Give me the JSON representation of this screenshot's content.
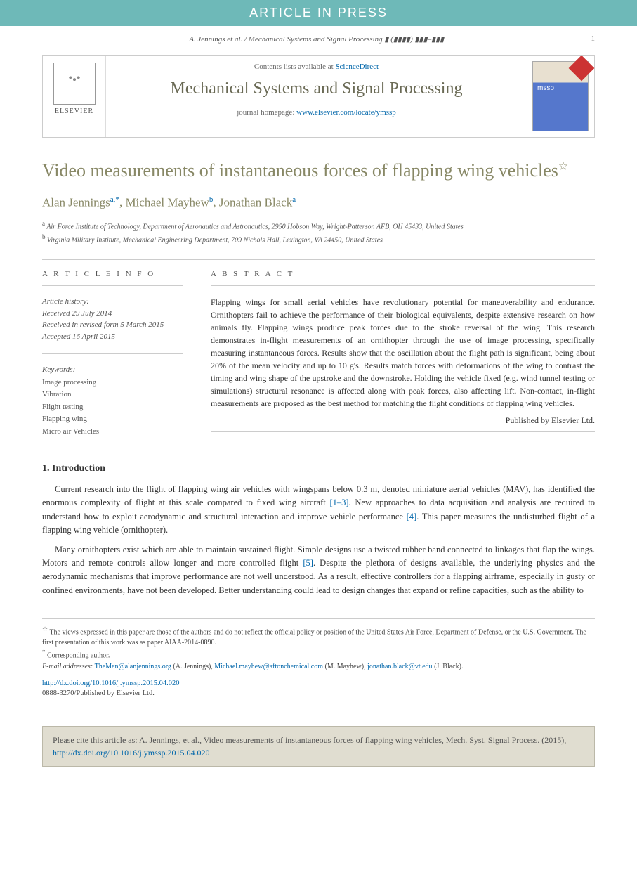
{
  "banner": "ARTICLE IN PRESS",
  "running_head": "A. Jennings et al. / Mechanical Systems and Signal Processing ▮ (▮▮▮▮) ▮▮▮–▮▮▮",
  "page_number": "1",
  "journal_box": {
    "contents_prefix": "Contents lists available at ",
    "contents_link": "ScienceDirect",
    "journal_name": "Mechanical Systems and Signal Processing",
    "homepage_prefix": "journal homepage: ",
    "homepage_url": "www.elsevier.com/locate/ymssp",
    "publisher": "ELSEVIER",
    "cover_abbr": "mssp"
  },
  "title": "Video measurements of instantaneous forces of flapping wing vehicles",
  "title_note": "☆",
  "authors": [
    {
      "name": "Alan Jennings",
      "marks": "a,*"
    },
    {
      "name": "Michael Mayhew",
      "marks": "b"
    },
    {
      "name": "Jonathan Black",
      "marks": "a"
    }
  ],
  "affiliations": [
    {
      "mark": "a",
      "text": "Air Force Institute of Technology, Department of Aeronautics and Astronautics, 2950 Hobson Way, Wright-Patterson AFB, OH 45433, United States"
    },
    {
      "mark": "b",
      "text": "Virginia Military Institute, Mechanical Engineering Department, 709 Nichols Hall, Lexington, VA 24450, United States"
    }
  ],
  "article_info": {
    "heading": "A R T I C L E   I N F O",
    "history_label": "Article history:",
    "received": "Received 29 July 2014",
    "revised": "Received in revised form 5 March 2015",
    "accepted": "Accepted 16 April 2015",
    "kw_label": "Keywords:",
    "keywords": [
      "Image processing",
      "Vibration",
      "Flight testing",
      "Flapping wing",
      "Micro air Vehicles"
    ]
  },
  "abstract": {
    "heading": "A B S T R A C T",
    "text": "Flapping wings for small aerial vehicles have revolutionary potential for maneuverability and endurance. Ornithopters fail to achieve the performance of their biological equivalents, despite extensive research on how animals fly. Flapping wings produce peak forces due to the stroke reversal of the wing. This research demonstrates in-flight measurements of an ornithopter through the use of image processing, specifically measuring instantaneous forces. Results show that the oscillation about the flight path is significant, being about 20% of the mean velocity and up to 10 g's. Results match forces with deformations of the wing to contrast the timing and wing shape of the upstroke and the downstroke. Holding the vehicle fixed (e.g. wind tunnel testing or simulations) structural resonance is affected along with peak forces, also affecting lift. Non-contact, in-flight measurements are proposed as the best method for matching the flight conditions of flapping wing vehicles.",
    "publisher": "Published by Elsevier Ltd."
  },
  "sections": {
    "intro_heading": "1.  Introduction",
    "para1_a": "Current research into the flight of flapping wing air vehicles with wingspans below 0.3 m, denoted miniature aerial vehicles (MAV), has identified the enormous complexity of flight at this scale compared to fixed wing aircraft ",
    "ref1": "[1–3]",
    "para1_b": ". New approaches to data acquisition and analysis are required to understand how to exploit aerodynamic and structural interaction and improve vehicle performance ",
    "ref2": "[4]",
    "para1_c": ". This paper measures the undisturbed flight of a flapping wing vehicle (ornithopter).",
    "para2_a": "Many ornithopters exist which are able to maintain sustained flight. Simple designs use a twisted rubber band connected to linkages that flap the wings. Motors and remote controls allow longer and more controlled flight ",
    "ref3": "[5]",
    "para2_b": ". Despite the plethora of designs available, the underlying physics and the aerodynamic mechanisms that improve performance are not well understood. As a result, effective controllers for a flapping airframe, especially in gusty or confined environments, have not been developed. Better understanding could lead to design changes that expand or refine capacities, such as the ability to"
  },
  "footnotes": {
    "views": "The views expressed in this paper are those of the authors and do not reflect the official policy or position of the United States Air Force, Department of Defense, or the U.S. Government. The first presentation of this work was as paper AIAA-2014-0890.",
    "corr": "Corresponding author.",
    "email_label": "E-mail addresses: ",
    "emails": [
      {
        "addr": "TheMan@alanjennings.org",
        "who": "(A. Jennings)"
      },
      {
        "addr": "Michael.mayhew@aftonchemical.com",
        "who": "(M. Mayhew)"
      },
      {
        "addr": "jonathan.black@vt.edu",
        "who": "(J. Black)"
      }
    ]
  },
  "doi": {
    "url": "http://dx.doi.org/10.1016/j.ymssp.2015.04.020",
    "issn": "0888-3270/Published by Elsevier Ltd."
  },
  "citebox": {
    "prefix": "Please cite this article as: A. Jennings, et al., Video measurements of instantaneous forces of flapping wing vehicles, Mech. Syst. Signal Process. (2015), ",
    "url": "http://dx.doi.org/10.1016/j.ymssp.2015.04.020"
  },
  "colors": {
    "banner_bg": "#6eb9b8",
    "olive": "#888866",
    "link": "#0066aa",
    "citebg": "#e0ddd0"
  }
}
